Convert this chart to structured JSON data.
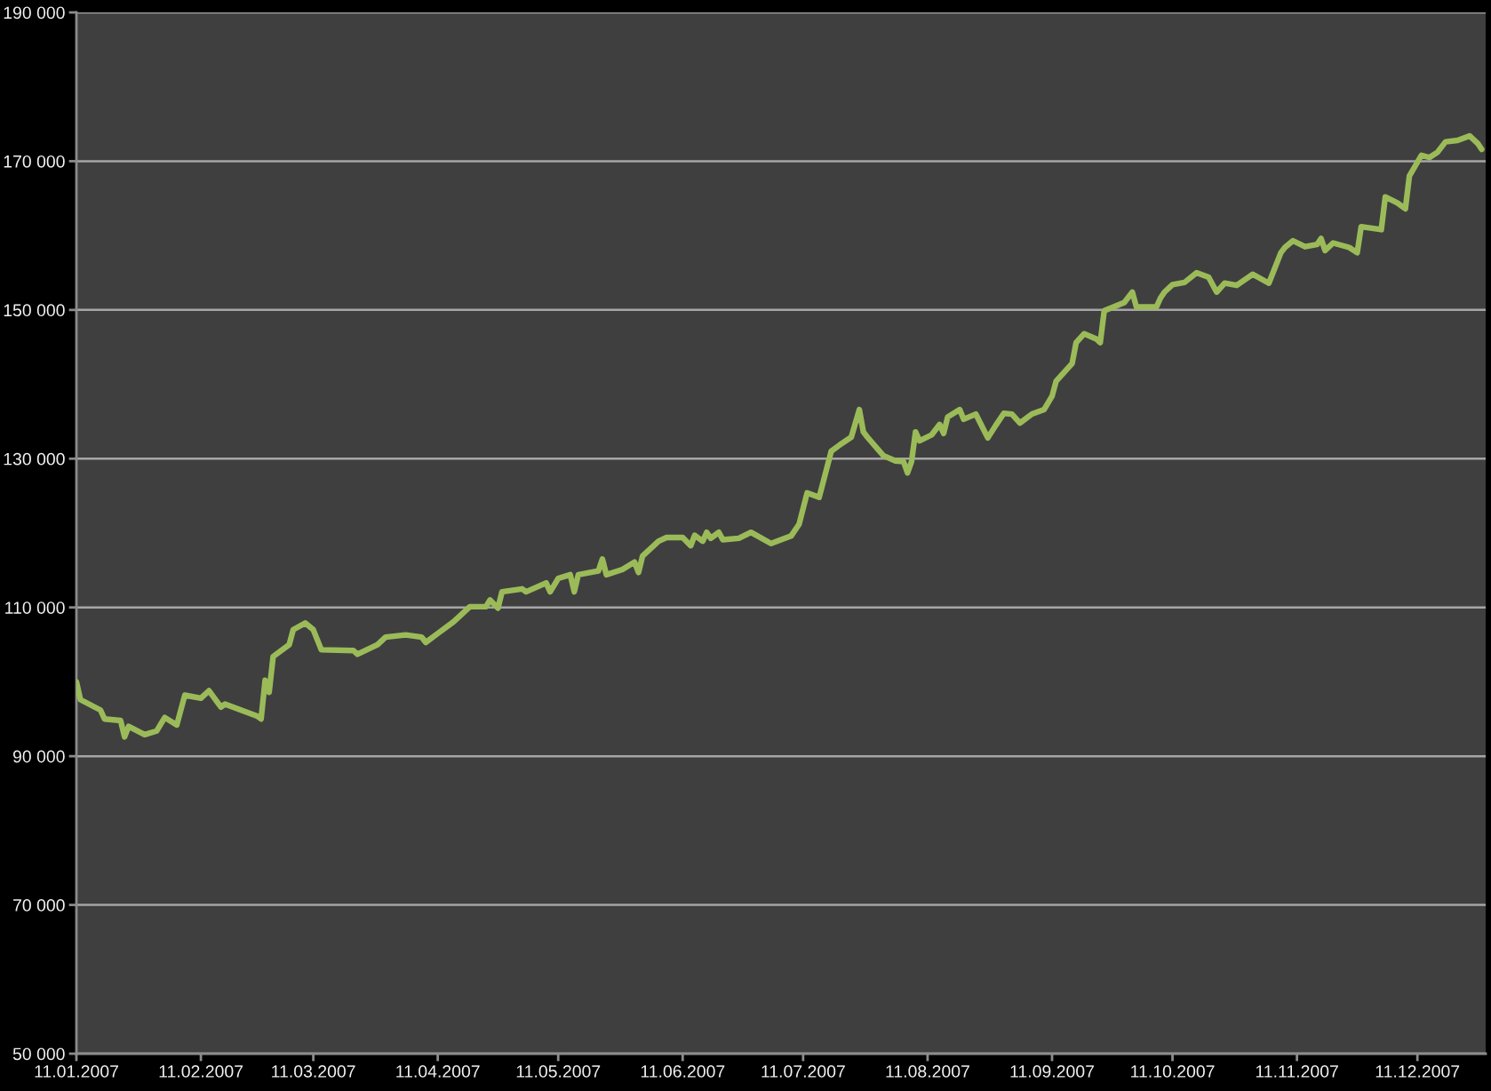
{
  "chart_data": {
    "type": "line",
    "x": [
      "2007-01-11",
      "2007-01-12",
      "2007-01-17",
      "2007-01-18",
      "2007-01-22",
      "2007-01-23",
      "2007-01-24",
      "2007-01-28",
      "2007-01-31",
      "2007-02-02",
      "2007-02-05",
      "2007-02-07",
      "2007-02-11",
      "2007-02-13",
      "2007-02-16",
      "2007-02-17",
      "2007-02-25",
      "2007-02-26",
      "2007-02-27",
      "2007-02-28",
      "2007-03-01",
      "2007-03-05",
      "2007-03-06",
      "2007-03-09",
      "2007-03-11",
      "2007-03-13",
      "2007-03-21",
      "2007-03-22",
      "2007-03-27",
      "2007-03-29",
      "2007-04-03",
      "2007-04-07",
      "2007-04-08",
      "2007-04-11",
      "2007-04-15",
      "2007-04-19",
      "2007-04-23",
      "2007-04-24",
      "2007-04-26",
      "2007-04-27",
      "2007-05-02",
      "2007-05-03",
      "2007-05-08",
      "2007-05-09",
      "2007-05-11",
      "2007-05-14",
      "2007-05-15",
      "2007-05-16",
      "2007-05-21",
      "2007-05-22",
      "2007-05-23",
      "2007-05-27",
      "2007-05-30",
      "2007-05-31",
      "2007-06-01",
      "2007-06-05",
      "2007-06-07",
      "2007-06-11",
      "2007-06-13",
      "2007-06-14",
      "2007-06-16",
      "2007-06-17",
      "2007-06-18",
      "2007-06-20",
      "2007-06-21",
      "2007-06-25",
      "2007-06-28",
      "2007-07-03",
      "2007-07-08",
      "2007-07-10",
      "2007-07-12",
      "2007-07-15",
      "2007-07-18",
      "2007-07-20",
      "2007-07-23",
      "2007-07-25",
      "2007-07-26",
      "2007-07-27",
      "2007-07-31",
      "2007-08-03",
      "2007-08-05",
      "2007-08-06",
      "2007-08-07",
      "2007-08-08",
      "2007-08-09",
      "2007-08-12",
      "2007-08-14",
      "2007-08-15",
      "2007-08-16",
      "2007-08-19",
      "2007-08-20",
      "2007-08-23",
      "2007-08-26",
      "2007-08-28",
      "2007-08-30",
      "2007-09-01",
      "2007-09-03",
      "2007-09-06",
      "2007-09-09",
      "2007-09-11",
      "2007-09-12",
      "2007-09-16",
      "2007-09-17",
      "2007-09-19",
      "2007-09-22",
      "2007-09-23",
      "2007-09-24",
      "2007-09-29",
      "2007-10-01",
      "2007-10-02",
      "2007-10-07",
      "2007-10-08",
      "2007-10-09",
      "2007-10-11",
      "2007-10-14",
      "2007-10-17",
      "2007-10-20",
      "2007-10-22",
      "2007-10-24",
      "2007-10-27",
      "2007-10-31",
      "2007-11-04",
      "2007-11-07",
      "2007-11-08",
      "2007-11-10",
      "2007-11-13",
      "2007-11-16",
      "2007-11-17",
      "2007-11-18",
      "2007-11-20",
      "2007-11-24",
      "2007-11-26",
      "2007-11-27",
      "2007-12-02",
      "2007-12-03",
      "2007-12-06",
      "2007-12-08",
      "2007-12-09",
      "2007-12-12",
      "2007-12-14",
      "2007-12-16",
      "2007-12-18",
      "2007-12-21",
      "2007-12-24",
      "2007-12-26",
      "2007-12-27"
    ],
    "series": [
      {
        "color": "#9bbb59",
        "values": [
          100000,
          97600,
          96200,
          95000,
          94800,
          92600,
          94000,
          92900,
          93400,
          95200,
          94200,
          98200,
          97800,
          98800,
          96600,
          97000,
          95400,
          95000,
          100200,
          98600,
          103400,
          105000,
          107000,
          107900,
          107000,
          104300,
          104200,
          103700,
          105000,
          106000,
          106300,
          106000,
          105300,
          106500,
          108100,
          110100,
          110100,
          111000,
          109900,
          112100,
          112500,
          112100,
          113300,
          112100,
          113900,
          114400,
          112100,
          114400,
          114900,
          116500,
          114400,
          115100,
          116100,
          114700,
          116900,
          118900,
          119400,
          119400,
          118300,
          119700,
          118900,
          120100,
          119300,
          120100,
          119100,
          119300,
          120100,
          118600,
          119600,
          121200,
          125400,
          124800,
          131000,
          131800,
          132900,
          136600,
          133600,
          132900,
          130400,
          129700,
          129600,
          128100,
          129600,
          133600,
          132400,
          133200,
          134600,
          133400,
          135600,
          136600,
          135300,
          136000,
          132800,
          134500,
          136100,
          136000,
          134800,
          136000,
          136600,
          138400,
          140400,
          142800,
          145600,
          146800,
          146100,
          145600,
          149900,
          151000,
          152400,
          150400,
          150400,
          151600,
          152400,
          153400,
          153700,
          155000,
          154400,
          152400,
          153600,
          153300,
          154800,
          153600,
          157700,
          158400,
          159300,
          158500,
          158800,
          159600,
          158000,
          159000,
          158400,
          157700,
          161200,
          160800,
          165200,
          164400,
          163600,
          168000,
          170800,
          170500,
          171200,
          172600,
          172800,
          173400,
          172400,
          171600
        ]
      }
    ],
    "xlim": [
      "2007-01-11",
      "2007-12-28"
    ],
    "xticks": [
      {
        "value": "2007-01-11",
        "label": "11.01.2007"
      },
      {
        "value": "2007-02-11",
        "label": "11.02.2007"
      },
      {
        "value": "2007-03-11",
        "label": "11.03.2007"
      },
      {
        "value": "2007-04-11",
        "label": "11.04.2007"
      },
      {
        "value": "2007-05-11",
        "label": "11.05.2007"
      },
      {
        "value": "2007-06-11",
        "label": "11.06.2007"
      },
      {
        "value": "2007-07-11",
        "label": "11.07.2007"
      },
      {
        "value": "2007-08-11",
        "label": "11.08.2007"
      },
      {
        "value": "2007-09-11",
        "label": "11.09.2007"
      },
      {
        "value": "2007-10-11",
        "label": "11.10.2007"
      },
      {
        "value": "2007-11-11",
        "label": "11.11.2007"
      },
      {
        "value": "2007-12-11",
        "label": "11.12.2007"
      }
    ],
    "ylim": [
      50000,
      190000
    ],
    "yticks": [
      {
        "value": 50000,
        "label": "50 000"
      },
      {
        "value": 70000,
        "label": "70 000"
      },
      {
        "value": 90000,
        "label": "90 000"
      },
      {
        "value": 110000,
        "label": "110 000"
      },
      {
        "value": 130000,
        "label": "130 000"
      },
      {
        "value": 150000,
        "label": "150 000"
      },
      {
        "value": 170000,
        "label": "170 000"
      },
      {
        "value": 190000,
        "label": "190 000"
      }
    ],
    "grid": "y",
    "marker": "none",
    "line_style": "solid"
  }
}
